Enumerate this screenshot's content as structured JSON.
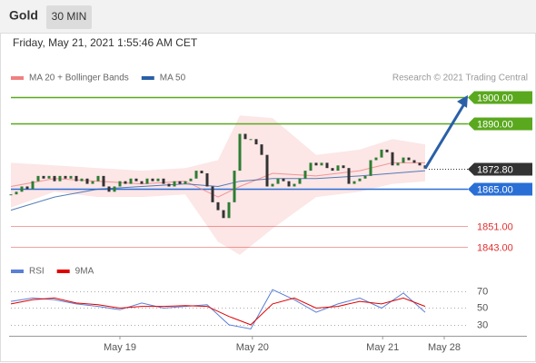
{
  "chart_data": [
    {
      "type": "candlestick",
      "title": "Gold",
      "interval": "30 MIN",
      "subtitle": "Friday, May 21, 2021 1:55:46 AM CET",
      "source": "Research © 2021 Trading Central",
      "xlim": [
        0,
        84
      ],
      "ylim": [
        1840.3,
        1904.1
      ],
      "up_color": "#2e7d32",
      "down_color": "#333333",
      "candles": {
        "x": [
          0,
          1,
          2,
          3,
          4,
          5,
          6,
          7,
          8,
          9,
          10,
          11,
          12,
          13,
          14,
          15,
          16,
          17,
          18,
          19,
          20,
          21,
          22,
          23,
          24,
          25,
          26,
          27,
          28,
          29,
          30,
          31,
          32,
          33,
          34,
          35,
          36,
          37,
          38,
          39,
          40,
          41,
          42,
          43,
          44,
          45,
          46,
          47,
          48,
          49,
          50,
          51,
          52,
          53,
          54,
          55,
          56,
          57,
          58,
          59,
          60,
          61,
          62,
          63,
          64,
          65,
          66,
          67,
          68,
          69,
          70,
          71,
          72,
          73,
          74,
          75,
          76
        ],
        "values": [
          1863,
          1864,
          1866,
          1865,
          1868,
          1870,
          1869,
          1870,
          1868,
          1870,
          1869,
          1870,
          1868,
          1869,
          1867,
          1868,
          1870,
          1866,
          1864,
          1866,
          1868,
          1867,
          1869,
          1868,
          1867,
          1869,
          1868,
          1869,
          1867,
          1866,
          1868,
          1867,
          1868,
          1869,
          1872,
          1871,
          1866,
          1860,
          1857,
          1854,
          1860,
          1872,
          1886,
          1884,
          1884,
          1882,
          1878,
          1866,
          1867,
          1869,
          1868,
          1866,
          1867,
          1869,
          1872,
          1875,
          1874,
          1875,
          1873,
          1872,
          1874,
          1873,
          1867,
          1868,
          1869,
          1870,
          1876,
          1877,
          1880,
          1879,
          1874,
          1875,
          1877,
          1876,
          1875,
          1874,
          1872.8
        ]
      },
      "series": [
        {
          "name": "MA 20 + Bollinger Bands",
          "color": "#f08080",
          "x": [
            0,
            8,
            16,
            24,
            32,
            38,
            42,
            48,
            56,
            64,
            70,
            76
          ],
          "values": [
            1866,
            1869,
            1868,
            1867,
            1868,
            1862,
            1866,
            1871,
            1870,
            1872,
            1875,
            1875
          ],
          "upper": [
            1875,
            1874,
            1873,
            1872,
            1873,
            1876,
            1893,
            1892,
            1878,
            1880,
            1884,
            1882
          ],
          "lower": [
            1858,
            1864,
            1862,
            1862,
            1863,
            1845,
            1840,
            1850,
            1862,
            1864,
            1867,
            1868
          ]
        },
        {
          "name": "MA 50",
          "color": "#2a5fa8",
          "x": [
            0,
            8,
            16,
            24,
            32,
            38,
            42,
            48,
            56,
            64,
            70,
            76
          ],
          "values": [
            1857,
            1862,
            1865,
            1866,
            1867,
            1866,
            1868,
            1869,
            1869,
            1870,
            1871,
            1872
          ]
        }
      ],
      "levels": [
        {
          "value": 1900,
          "label": "1900.00",
          "color": "#5aa81e",
          "boxed": true
        },
        {
          "value": 1890,
          "label": "1890.00",
          "color": "#5aa81e",
          "boxed": true
        },
        {
          "value": 1872.8,
          "label": "1872.80",
          "color": "#333333",
          "boxed": true,
          "dotted": true
        },
        {
          "value": 1865,
          "label": "1865.00",
          "color": "#2a6fd6",
          "boxed": true
        },
        {
          "value": 1851,
          "label": "1851.00",
          "color": "#e03030",
          "boxed": false
        },
        {
          "value": 1843,
          "label": "1843.00",
          "color": "#e03030",
          "boxed": false
        }
      ]
    },
    {
      "type": "line",
      "xlim": [
        0,
        84
      ],
      "ylim": [
        19,
        82
      ],
      "yticks": [
        70,
        50,
        30
      ],
      "xticks": [
        {
          "value": 20,
          "label": "May 19"
        },
        {
          "value": 44.3,
          "label": "May 20"
        },
        {
          "value": 68.2,
          "label": "May 21"
        },
        {
          "value": 79.5,
          "label": "May 28"
        }
      ],
      "series": [
        {
          "name": "RSI",
          "color": "#5b7fd6",
          "x": [
            0,
            4,
            8,
            12,
            16,
            20,
            24,
            28,
            32,
            36,
            40,
            44,
            48,
            52,
            56,
            60,
            64,
            68,
            72,
            76
          ],
          "values": [
            58,
            62,
            60,
            55,
            52,
            48,
            56,
            50,
            52,
            54,
            30,
            25,
            72,
            60,
            45,
            55,
            62,
            50,
            68,
            45
          ]
        },
        {
          "name": "9MA",
          "color": "#e00000",
          "x": [
            0,
            4,
            8,
            12,
            16,
            20,
            24,
            28,
            32,
            36,
            40,
            44,
            48,
            52,
            56,
            60,
            64,
            68,
            72,
            76
          ],
          "values": [
            55,
            60,
            62,
            56,
            54,
            50,
            52,
            52,
            53,
            52,
            40,
            30,
            55,
            62,
            50,
            52,
            58,
            55,
            62,
            52
          ]
        }
      ]
    }
  ]
}
